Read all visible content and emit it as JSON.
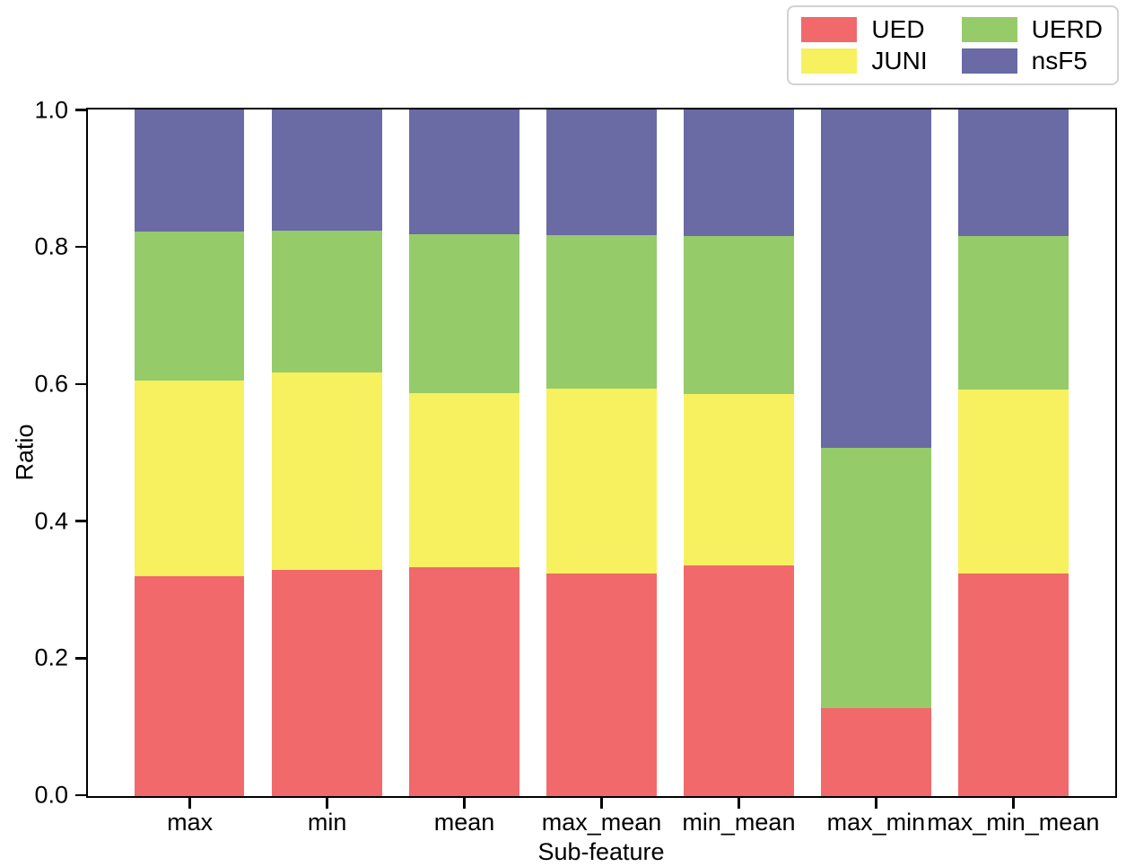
{
  "figure": {
    "background": "#ffffff",
    "text_color": "#000000",
    "legend_border_color": "#d2d2d2"
  },
  "chart_data": {
    "type": "bar",
    "stacked": true,
    "title": "",
    "xlabel": "Sub-feature",
    "ylabel": "Ratio",
    "ylim": [
      0.0,
      1.0
    ],
    "yticks": [
      "0.0",
      "0.2",
      "0.4",
      "0.6",
      "0.8",
      "1.0"
    ],
    "grid": false,
    "categories": [
      "max",
      "min",
      "mean",
      "max_mean",
      "min_mean",
      "max_min",
      "max_min_mean"
    ],
    "series": [
      {
        "name": "UED",
        "color": "#F1696B",
        "values": [
          0.32,
          0.329,
          0.333,
          0.324,
          0.336,
          0.127,
          0.324
        ]
      },
      {
        "name": "JUNI",
        "color": "#F7F05F",
        "values": [
          0.285,
          0.288,
          0.254,
          0.269,
          0.249,
          0.0,
          0.268
        ]
      },
      {
        "name": "UERD",
        "color": "#95CB69",
        "values": [
          0.217,
          0.207,
          0.231,
          0.224,
          0.231,
          0.38,
          0.224
        ]
      },
      {
        "name": "nsF5",
        "color": "#6A6AA5",
        "values": [
          0.178,
          0.176,
          0.182,
          0.183,
          0.184,
          0.493,
          0.184
        ]
      }
    ],
    "legend": {
      "position": "upper right",
      "columns": 2,
      "entries": [
        "UED",
        "JUNI",
        "UERD",
        "nsF5"
      ]
    }
  }
}
